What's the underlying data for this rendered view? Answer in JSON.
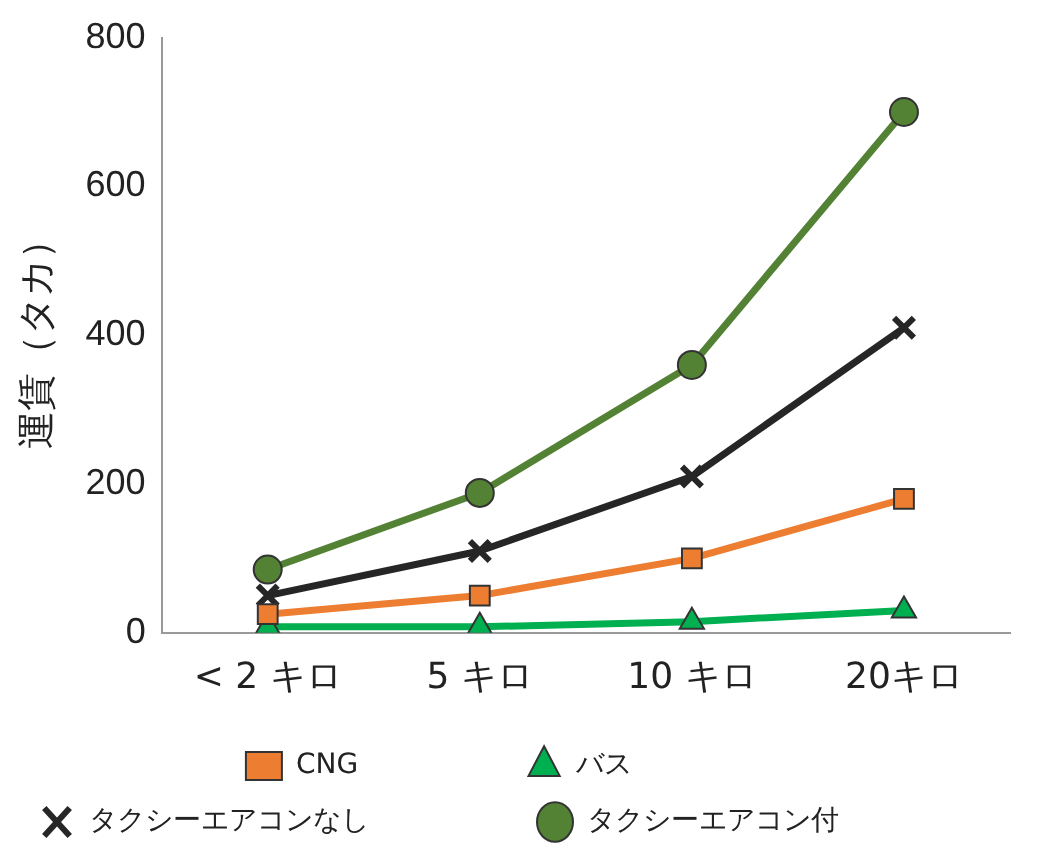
{
  "chart_data": {
    "type": "line",
    "ylabel": "運賃（タカ）",
    "categories": [
      "< 2 キロ",
      "5 キロ",
      "10 キロ",
      "20キロ"
    ],
    "ylim": [
      0,
      800
    ],
    "yticks": [
      0,
      200,
      400,
      600,
      800
    ],
    "grid": false,
    "legend": "bottom",
    "line_style": "solid",
    "series": [
      {
        "name": "CNG",
        "color": "#ed7d31",
        "marker": "square",
        "values": [
          25,
          50,
          100,
          180
        ]
      },
      {
        "name": "バス",
        "color": "#00b050",
        "marker": "triangle",
        "values": [
          8,
          8,
          15,
          30
        ]
      },
      {
        "name": "タクシーエアコンなし",
        "color": "#262626",
        "marker": "cross",
        "values": [
          50,
          110,
          210,
          410
        ]
      },
      {
        "name": "タクシーエアコン付",
        "color": "#548235",
        "marker": "circle",
        "values": [
          85,
          188,
          360,
          700
        ]
      }
    ]
  }
}
